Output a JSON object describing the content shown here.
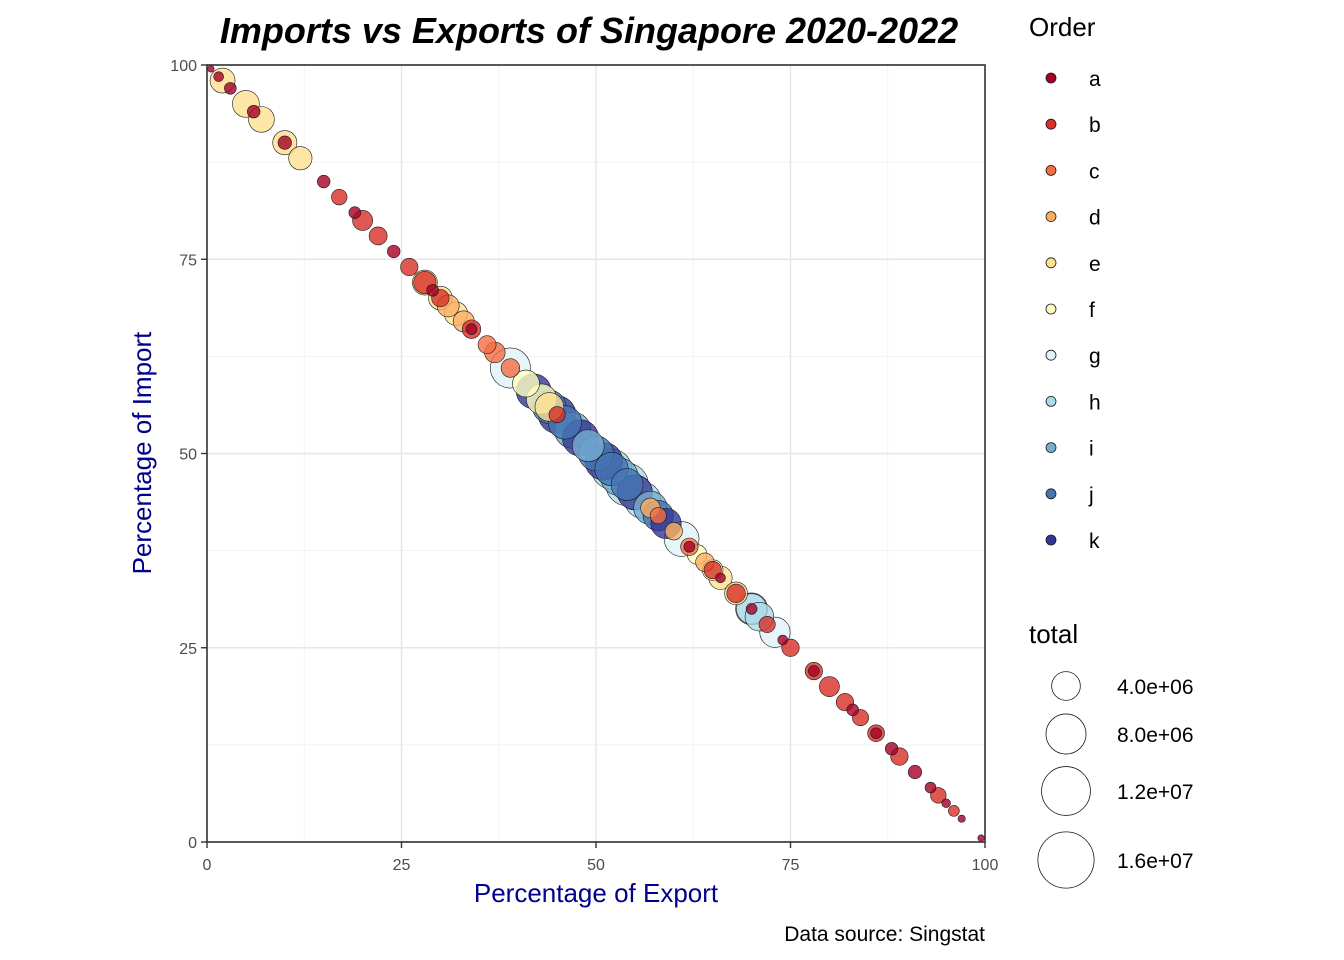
{
  "chart_data": {
    "type": "scatter",
    "title": "Imports vs Exports of Singapore 2020-2022",
    "xlabel": "Percentage of Export",
    "ylabel": "Percentage of Import",
    "caption": "Data source: Singstat",
    "xlim": [
      0,
      100
    ],
    "ylim": [
      0,
      100
    ],
    "x_ticks": [
      "0",
      "25",
      "50",
      "75",
      "100"
    ],
    "y_ticks": [
      "0",
      "25",
      "50",
      "75",
      "100"
    ],
    "grid": true,
    "color_legend": {
      "title": "Order",
      "position": "right",
      "entries": [
        {
          "label": "a",
          "color": "#a50026"
        },
        {
          "label": "b",
          "color": "#d73027"
        },
        {
          "label": "c",
          "color": "#f46d43"
        },
        {
          "label": "d",
          "color": "#fdae61"
        },
        {
          "label": "e",
          "color": "#fee090"
        },
        {
          "label": "f",
          "color": "#ffffbf"
        },
        {
          "label": "g",
          "color": "#e0f3f8"
        },
        {
          "label": "h",
          "color": "#abd9e9"
        },
        {
          "label": "i",
          "color": "#74add1"
        },
        {
          "label": "j",
          "color": "#4575b4"
        },
        {
          "label": "k",
          "color": "#313695"
        }
      ]
    },
    "size_legend": {
      "title": "total",
      "position": "right",
      "entries": [
        {
          "label": "4.0e+06",
          "value": 4000000
        },
        {
          "label": "8.0e+06",
          "value": 8000000
        },
        {
          "label": "1.2e+07",
          "value": 12000000
        },
        {
          "label": "1.6e+07",
          "value": 16000000
        }
      ]
    },
    "series": [
      {
        "order": "a",
        "points": [
          [
            0.5,
            99.5,
            150000
          ],
          [
            1.5,
            98.5,
            400000
          ],
          [
            3,
            97,
            600000
          ],
          [
            6,
            94,
            700000
          ],
          [
            10,
            90,
            800000
          ],
          [
            15,
            85,
            700000
          ],
          [
            19,
            81,
            600000
          ],
          [
            24,
            76,
            700000
          ],
          [
            29,
            71,
            600000
          ],
          [
            34,
            66,
            500000
          ],
          [
            62,
            38,
            500000
          ],
          [
            66,
            34,
            400000
          ],
          [
            70,
            30,
            500000
          ],
          [
            74,
            26,
            400000
          ],
          [
            78,
            22,
            500000
          ],
          [
            83,
            17,
            600000
          ],
          [
            86,
            14,
            500000
          ],
          [
            88,
            12,
            700000
          ],
          [
            91,
            9,
            800000
          ],
          [
            93,
            7,
            500000
          ],
          [
            95,
            5,
            300000
          ],
          [
            97,
            3,
            200000
          ],
          [
            99.5,
            0.5,
            150000
          ]
        ]
      },
      {
        "order": "b",
        "points": [
          [
            17,
            83,
            1100000
          ],
          [
            20,
            80,
            1900000
          ],
          [
            22,
            78,
            1500000
          ],
          [
            26,
            74,
            1400000
          ],
          [
            28,
            72,
            2400000
          ],
          [
            30,
            70,
            1400000
          ],
          [
            34,
            66,
            1600000
          ],
          [
            45,
            55,
            1200000
          ],
          [
            65,
            35,
            1400000
          ],
          [
            68,
            32,
            1600000
          ],
          [
            72,
            28,
            1200000
          ],
          [
            75,
            25,
            1400000
          ],
          [
            78,
            22,
            1400000
          ],
          [
            80,
            20,
            1900000
          ],
          [
            82,
            18,
            1400000
          ],
          [
            84,
            16,
            1200000
          ],
          [
            86,
            14,
            1300000
          ],
          [
            89,
            11,
            1400000
          ],
          [
            94,
            6,
            1100000
          ],
          [
            96,
            4,
            500000
          ]
        ]
      },
      {
        "order": "c",
        "points": [
          [
            37,
            63,
            2000000
          ],
          [
            39,
            61,
            1600000
          ],
          [
            58,
            42,
            1200000
          ],
          [
            62,
            38,
            1400000
          ],
          [
            36,
            64,
            1500000
          ]
        ]
      },
      {
        "order": "d",
        "points": [
          [
            31,
            69,
            2300000
          ],
          [
            33,
            67,
            2100000
          ],
          [
            57,
            43,
            1800000
          ],
          [
            64,
            36,
            1600000
          ],
          [
            60,
            40,
            1400000
          ]
        ]
      },
      {
        "order": "e",
        "points": [
          [
            2,
            98,
            3000000
          ],
          [
            5,
            95,
            3500000
          ],
          [
            7,
            93,
            3200000
          ],
          [
            10,
            90,
            2800000
          ],
          [
            12,
            88,
            2600000
          ],
          [
            28,
            72,
            3000000
          ],
          [
            30,
            70,
            2700000
          ],
          [
            32,
            68,
            2600000
          ],
          [
            44,
            56,
            4000000
          ],
          [
            66,
            34,
            2600000
          ],
          [
            68,
            32,
            2500000
          ]
        ]
      },
      {
        "order": "f",
        "points": [
          [
            41,
            59,
            3500000
          ],
          [
            43,
            57,
            4500000
          ],
          [
            63,
            37,
            1800000
          ],
          [
            65,
            35,
            2000000
          ]
        ]
      },
      {
        "order": "g",
        "points": [
          [
            39,
            61,
            8000000
          ],
          [
            55,
            45,
            6000000
          ],
          [
            61,
            39,
            6000000
          ],
          [
            70,
            30,
            5000000
          ],
          [
            73,
            27,
            4500000
          ]
        ]
      },
      {
        "order": "h",
        "points": [
          [
            52,
            48,
            8000000
          ],
          [
            54,
            46,
            9000000
          ],
          [
            56,
            44,
            6500000
          ],
          [
            70,
            30,
            4500000
          ],
          [
            71,
            29,
            4000000
          ]
        ]
      },
      {
        "order": "i",
        "points": [
          [
            47,
            53,
            6500000
          ],
          [
            49,
            51,
            5000000
          ],
          [
            53,
            47,
            7000000
          ],
          [
            57,
            43,
            5500000
          ]
        ]
      },
      {
        "order": "j",
        "points": [
          [
            44,
            56,
            5500000
          ],
          [
            46,
            54,
            5500000
          ],
          [
            50,
            50,
            6000000
          ],
          [
            52,
            48,
            5500000
          ],
          [
            54,
            46,
            5000000
          ],
          [
            58,
            42,
            4500000
          ]
        ]
      },
      {
        "order": "k",
        "points": [
          [
            42,
            58,
            6000000
          ],
          [
            45,
            55,
            7000000
          ],
          [
            48,
            52,
            6500000
          ],
          [
            51,
            49,
            7000000
          ],
          [
            55,
            45,
            6000000
          ],
          [
            59,
            41,
            4500000
          ]
        ]
      }
    ]
  }
}
